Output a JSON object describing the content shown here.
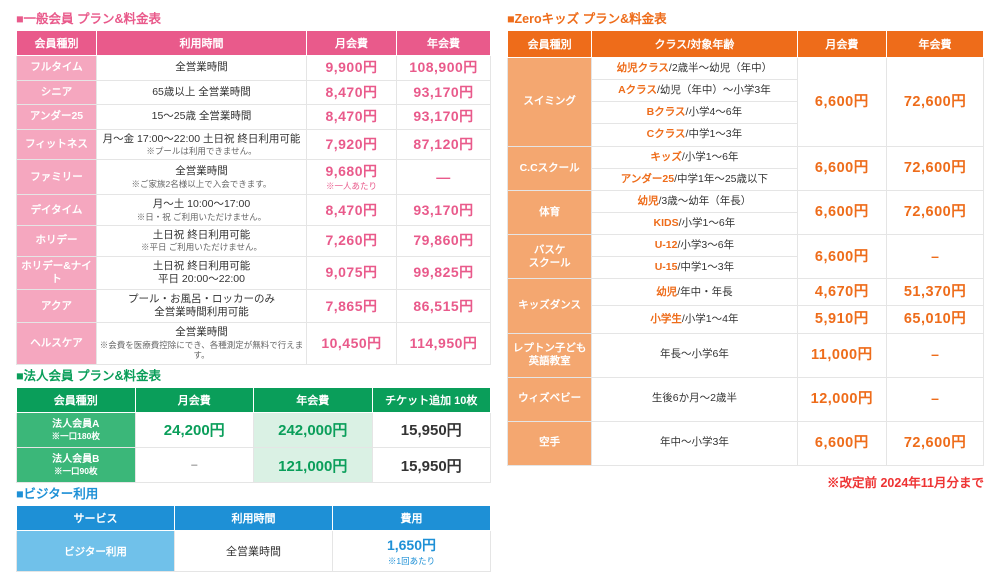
{
  "general": {
    "title": "■一般会員 プラン&料金表",
    "columns": [
      "会員種別",
      "利用時間",
      "月会費",
      "年会費"
    ],
    "col_widths": [
      "80",
      "210",
      "90",
      "94"
    ],
    "rows": [
      {
        "name": "フルタイム",
        "time": "全営業時間",
        "month": "9,900円",
        "year": "108,900円"
      },
      {
        "name": "シニア",
        "time": "65歳以上 全営業時間",
        "month": "8,470円",
        "year": "93,170円"
      },
      {
        "name": "アンダー25",
        "time": "15～25歳 全営業時間",
        "month": "8,470円",
        "year": "93,170円"
      },
      {
        "name": "フィットネス",
        "time": "月～金 17:00～22:00 土日祝 終日利用可能",
        "note": "※プールは利用できません。",
        "month": "7,920円",
        "year": "87,120円"
      },
      {
        "name": "ファミリー",
        "time": "全営業時間",
        "note": "※ご家族2名様以上で入会できます。",
        "month": "9,680円",
        "mnote": "※一人あたり",
        "year": "—"
      },
      {
        "name": "デイタイム",
        "time": "月～土 10:00～17:00",
        "note": "※日・祝 ご利用いただけません。",
        "month": "8,470円",
        "year": "93,170円"
      },
      {
        "name": "ホリデー",
        "time": "土日祝 終日利用可能",
        "note": "※平日 ご利用いただけません。",
        "month": "7,260円",
        "year": "79,860円"
      },
      {
        "name": "ホリデー&ナイト",
        "time": "土日祝 終日利用可能\n平日 20:00～22:00",
        "month": "9,075円",
        "year": "99,825円"
      },
      {
        "name": "アクア",
        "time": "プール・お風呂・ロッカーのみ\n全営業時間利用可能",
        "month": "7,865円",
        "year": "86,515円"
      },
      {
        "name": "ヘルスケア",
        "time": "全営業時間",
        "note": "※会費を医療費控除にでき、各種測定が無料で行えます。",
        "month": "10,450円",
        "year": "114,950円"
      }
    ]
  },
  "corporate": {
    "title": "■法人会員 プラン&料金表",
    "columns": [
      "会員種別",
      "月会費",
      "年会費",
      "チケット追加 10枚"
    ],
    "rows": [
      {
        "name": "法人会員A",
        "sub": "※一口180枚",
        "month": "24,200円",
        "year": "242,000円",
        "ticket": "15,950円"
      },
      {
        "name": "法人会員B",
        "sub": "※一口90枚",
        "month": "–",
        "year": "121,000円",
        "ticket": "15,950円"
      }
    ]
  },
  "visitor": {
    "title": "■ビジター利用",
    "columns": [
      "サービス",
      "利用時間",
      "費用"
    ],
    "rows": [
      {
        "name": "ビジター利用",
        "time": "全営業時間",
        "price": "1,650円",
        "note": "※1回あたり"
      }
    ]
  },
  "kids": {
    "title": "■Zeroキッズ プラン&料金表",
    "columns": [
      "会員種別",
      "クラス/対象年齢",
      "月会費",
      "年会費"
    ],
    "col_widths": [
      "80",
      "195",
      "85",
      "92"
    ],
    "groups": [
      {
        "name": "スイミング",
        "rows": [
          {
            "cls": "幼児クラス",
            "age": "/2歳半～幼児（年中）"
          },
          {
            "cls": "Aクラス",
            "age": "/幼児（年中）～小学3年"
          },
          {
            "cls": "Bクラス",
            "age": "/小学4～6年"
          },
          {
            "cls": "Cクラス",
            "age": "/中学1～3年"
          }
        ],
        "month": "6,600円",
        "year": "72,600円"
      },
      {
        "name": "C.Cスクール",
        "rows": [
          {
            "cls": "キッズ",
            "age": "/小学1～6年"
          },
          {
            "cls": "アンダー25",
            "age": "/中学1年～25歳以下"
          }
        ],
        "month": "6,600円",
        "year": "72,600円"
      },
      {
        "name": "体育",
        "rows": [
          {
            "cls": "幼児",
            "age": "/3歳～幼年（年長）"
          },
          {
            "cls": "KIDS",
            "age": "/小学1～6年"
          }
        ],
        "month": "6,600円",
        "year": "72,600円"
      },
      {
        "name": "バスケ\nスクール",
        "rows": [
          {
            "cls": "U-12",
            "age": "/小学3～6年"
          },
          {
            "cls": "U-15",
            "age": "/中学1～3年"
          }
        ],
        "month": "6,600円",
        "year": "–"
      },
      {
        "name": "キッズダンス",
        "rows": [
          {
            "cls": "幼児",
            "age": "/年中・年長",
            "month": "4,670円",
            "year": "51,370円"
          },
          {
            "cls": "小学生",
            "age": "/小学1～4年",
            "month": "5,910円",
            "year": "65,010円"
          }
        ],
        "per_row_price": true
      },
      {
        "name": "レプトン子ども\n英語教室",
        "rows": [
          {
            "cls": "",
            "age": "年長～小学6年"
          }
        ],
        "month": "11,000円",
        "year": "–",
        "tall": true
      },
      {
        "name": "ウィズベビー",
        "rows": [
          {
            "cls": "",
            "age": "生後6か月～2歳半"
          }
        ],
        "month": "12,000円",
        "year": "–",
        "tall": true
      },
      {
        "name": "空手",
        "rows": [
          {
            "cls": "",
            "age": "年中～小学3年"
          }
        ],
        "month": "6,600円",
        "year": "72,600円",
        "tall": true
      }
    ]
  },
  "footnote": "※改定前 2024年11月分まで"
}
